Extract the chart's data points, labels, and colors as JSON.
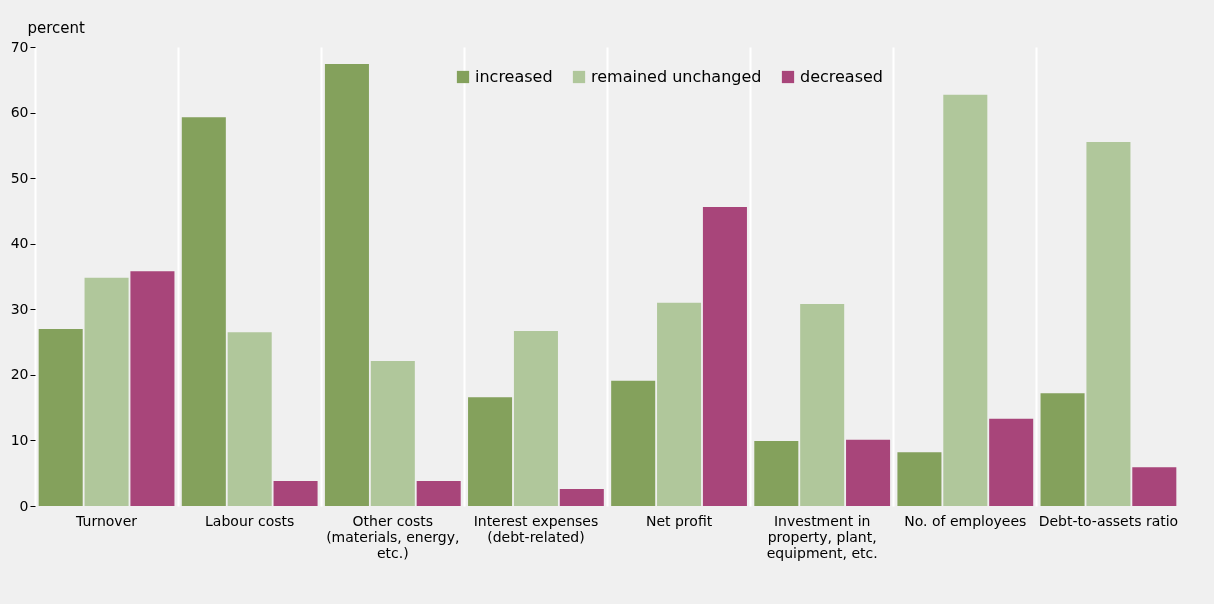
{
  "chart_data": {
    "type": "bar",
    "ylabel": "percent",
    "categories": [
      "Turnover",
      "Labour costs",
      "Other costs (materials, energy, etc.)",
      "Interest expenses (debt-related)",
      "Net profit",
      "Investment in property, plant, equipment, etc.",
      "No. of employees",
      "Debt-to-assets ratio"
    ],
    "series": [
      {
        "name": "increased",
        "color": "#84a15c",
        "values": [
          27.0,
          59.3,
          67.4,
          16.6,
          19.1,
          9.9,
          8.2,
          17.2
        ]
      },
      {
        "name": "remained unchanged",
        "color": "#b0c79b",
        "values": [
          34.8,
          26.5,
          22.1,
          26.7,
          31.0,
          30.8,
          62.7,
          55.5
        ]
      },
      {
        "name": "decreased",
        "color": "#a8457a",
        "values": [
          35.8,
          3.8,
          3.8,
          2.6,
          45.6,
          10.1,
          13.3,
          5.9
        ]
      }
    ],
    "ylim": [
      0,
      70
    ],
    "yticks": [
      0,
      10,
      20,
      30,
      40,
      50,
      60,
      70
    ],
    "grid": "x",
    "legend": "top"
  }
}
